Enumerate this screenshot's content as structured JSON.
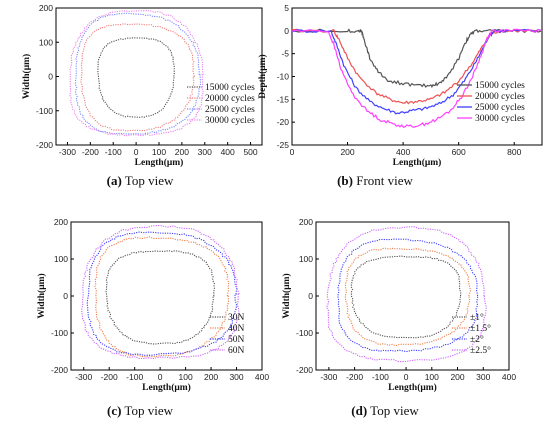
{
  "chart_data": [
    {
      "id": "a",
      "type": "scatter",
      "caption_letter": "(a)",
      "caption_text": " Top view",
      "xlabel": "Length(μm)",
      "ylabel": "Width(μm)",
      "xlim": [
        -350,
        550
      ],
      "ylim": [
        -200,
        200
      ],
      "xticks": [
        -300,
        -200,
        -100,
        0,
        100,
        200,
        300,
        400,
        500
      ],
      "yticks": [
        -200,
        -100,
        0,
        100,
        200
      ],
      "legend_position": "bottom-right",
      "series": [
        {
          "name": "15000 cycles",
          "color": "#555555",
          "cx": 0,
          "cy": 0,
          "rx": 165,
          "ry": 115
        },
        {
          "name": "20000 cycles",
          "color": "#f08080",
          "cx": 0,
          "cy": 0,
          "rx": 245,
          "ry": 155
        },
        {
          "name": "25000 cycles",
          "color": "#7b8cff",
          "cx": 0,
          "cy": 5,
          "rx": 270,
          "ry": 175
        },
        {
          "name": "30000 cycles",
          "color": "#ee82ee",
          "cx": 0,
          "cy": 5,
          "rx": 290,
          "ry": 182
        }
      ]
    },
    {
      "id": "b",
      "type": "line",
      "caption_letter": "(b)",
      "caption_text": " Front view",
      "xlabel": "Length(μm)",
      "ylabel": "Depth(μm)",
      "xlim": [
        0,
        900
      ],
      "ylim": [
        -25,
        5
      ],
      "xticks": [
        0,
        200,
        400,
        600,
        800
      ],
      "yticks": [
        -25,
        -20,
        -15,
        -10,
        -5,
        0,
        5
      ],
      "legend_position": "right",
      "series": [
        {
          "name": "15000 cycles",
          "color": "#555555",
          "x": [
            0,
            200,
            240,
            250,
            260,
            280,
            310,
            350,
            400,
            450,
            500,
            530,
            560,
            600,
            620,
            640,
            660,
            700,
            750,
            800,
            900
          ],
          "y": [
            0,
            0,
            0,
            0,
            -2,
            -6,
            -9,
            -11,
            -11.5,
            -12,
            -12,
            -11.5,
            -10,
            -6,
            -3,
            -1,
            0,
            0,
            0,
            0,
            0
          ]
        },
        {
          "name": "20000 cycles",
          "color": "#f05050",
          "x": [
            0,
            150,
            170,
            200,
            240,
            300,
            350,
            400,
            450,
            500,
            550,
            600,
            650,
            680,
            700,
            720,
            750,
            800,
            900
          ],
          "y": [
            0,
            0,
            -2,
            -6,
            -10,
            -13.5,
            -15,
            -15.8,
            -15.5,
            -15,
            -13.5,
            -11,
            -7,
            -4,
            -2,
            -0.5,
            0,
            0,
            0
          ]
        },
        {
          "name": "25000 cycles",
          "color": "#4040ff",
          "x": [
            0,
            140,
            160,
            190,
            230,
            280,
            330,
            380,
            430,
            480,
            530,
            580,
            620,
            660,
            690,
            710,
            730,
            800,
            900
          ],
          "y": [
            0,
            0,
            -3,
            -8,
            -12.5,
            -15.5,
            -17,
            -18,
            -17.5,
            -17,
            -16,
            -14,
            -11,
            -7,
            -3.5,
            -1,
            0,
            0,
            0
          ]
        },
        {
          "name": "30000 cycles",
          "color": "#ff40ff",
          "x": [
            0,
            130,
            150,
            180,
            220,
            270,
            320,
            370,
            420,
            470,
            520,
            570,
            610,
            650,
            680,
            700,
            720,
            800,
            900
          ],
          "y": [
            0,
            0,
            -3,
            -9,
            -14,
            -17.5,
            -19.5,
            -20.5,
            -21,
            -20.5,
            -19.5,
            -17.5,
            -14.5,
            -10,
            -5.5,
            -2,
            0,
            0,
            0
          ]
        }
      ]
    },
    {
      "id": "c",
      "type": "scatter",
      "caption_letter": "(c)",
      "caption_text": " Top view",
      "xlabel": "Length(μm)",
      "ylabel": "Width(μm)",
      "xlim": [
        -350,
        400
      ],
      "ylim": [
        -200,
        200
      ],
      "xticks": [
        -300,
        -200,
        -100,
        0,
        100,
        200,
        300,
        400
      ],
      "yticks": [
        -200,
        -100,
        0,
        100,
        200
      ],
      "legend_position": "bottom-right",
      "series": [
        {
          "name": "30N",
          "color": "#555555",
          "cx": 0,
          "cy": 0,
          "rx": 210,
          "ry": 125
        },
        {
          "name": "40N",
          "color": "#f08050",
          "cx": 0,
          "cy": 0,
          "rx": 260,
          "ry": 160
        },
        {
          "name": "50N",
          "color": "#4040ff",
          "cx": 0,
          "cy": 5,
          "rx": 290,
          "ry": 165
        },
        {
          "name": "60N",
          "color": "#cc66ff",
          "cx": 0,
          "cy": 5,
          "rx": 305,
          "ry": 178
        }
      ]
    },
    {
      "id": "d",
      "type": "scatter",
      "caption_letter": "(d)",
      "caption_text": " Top view",
      "xlabel": "Length(μm)",
      "ylabel": "Width(μm)",
      "xlim": [
        -350,
        400
      ],
      "ylim": [
        -200,
        200
      ],
      "xticks": [
        -300,
        -200,
        -100,
        0,
        100,
        200,
        300,
        400
      ],
      "yticks": [
        -200,
        -100,
        0,
        100,
        200
      ],
      "legend_position": "bottom-right",
      "series": [
        {
          "name": "±1°",
          "color": "#555555",
          "cx": 0,
          "cy": 0,
          "rx": 210,
          "ry": 110
        },
        {
          "name": "±1.5°",
          "color": "#f08050",
          "cx": 0,
          "cy": 0,
          "rx": 240,
          "ry": 130
        },
        {
          "name": "±2°",
          "color": "#4040ff",
          "cx": 0,
          "cy": 0,
          "rx": 270,
          "ry": 150
        },
        {
          "name": "±2.5°",
          "color": "#cc66ff",
          "cx": 0,
          "cy": 0,
          "rx": 305,
          "ry": 180
        }
      ]
    }
  ]
}
